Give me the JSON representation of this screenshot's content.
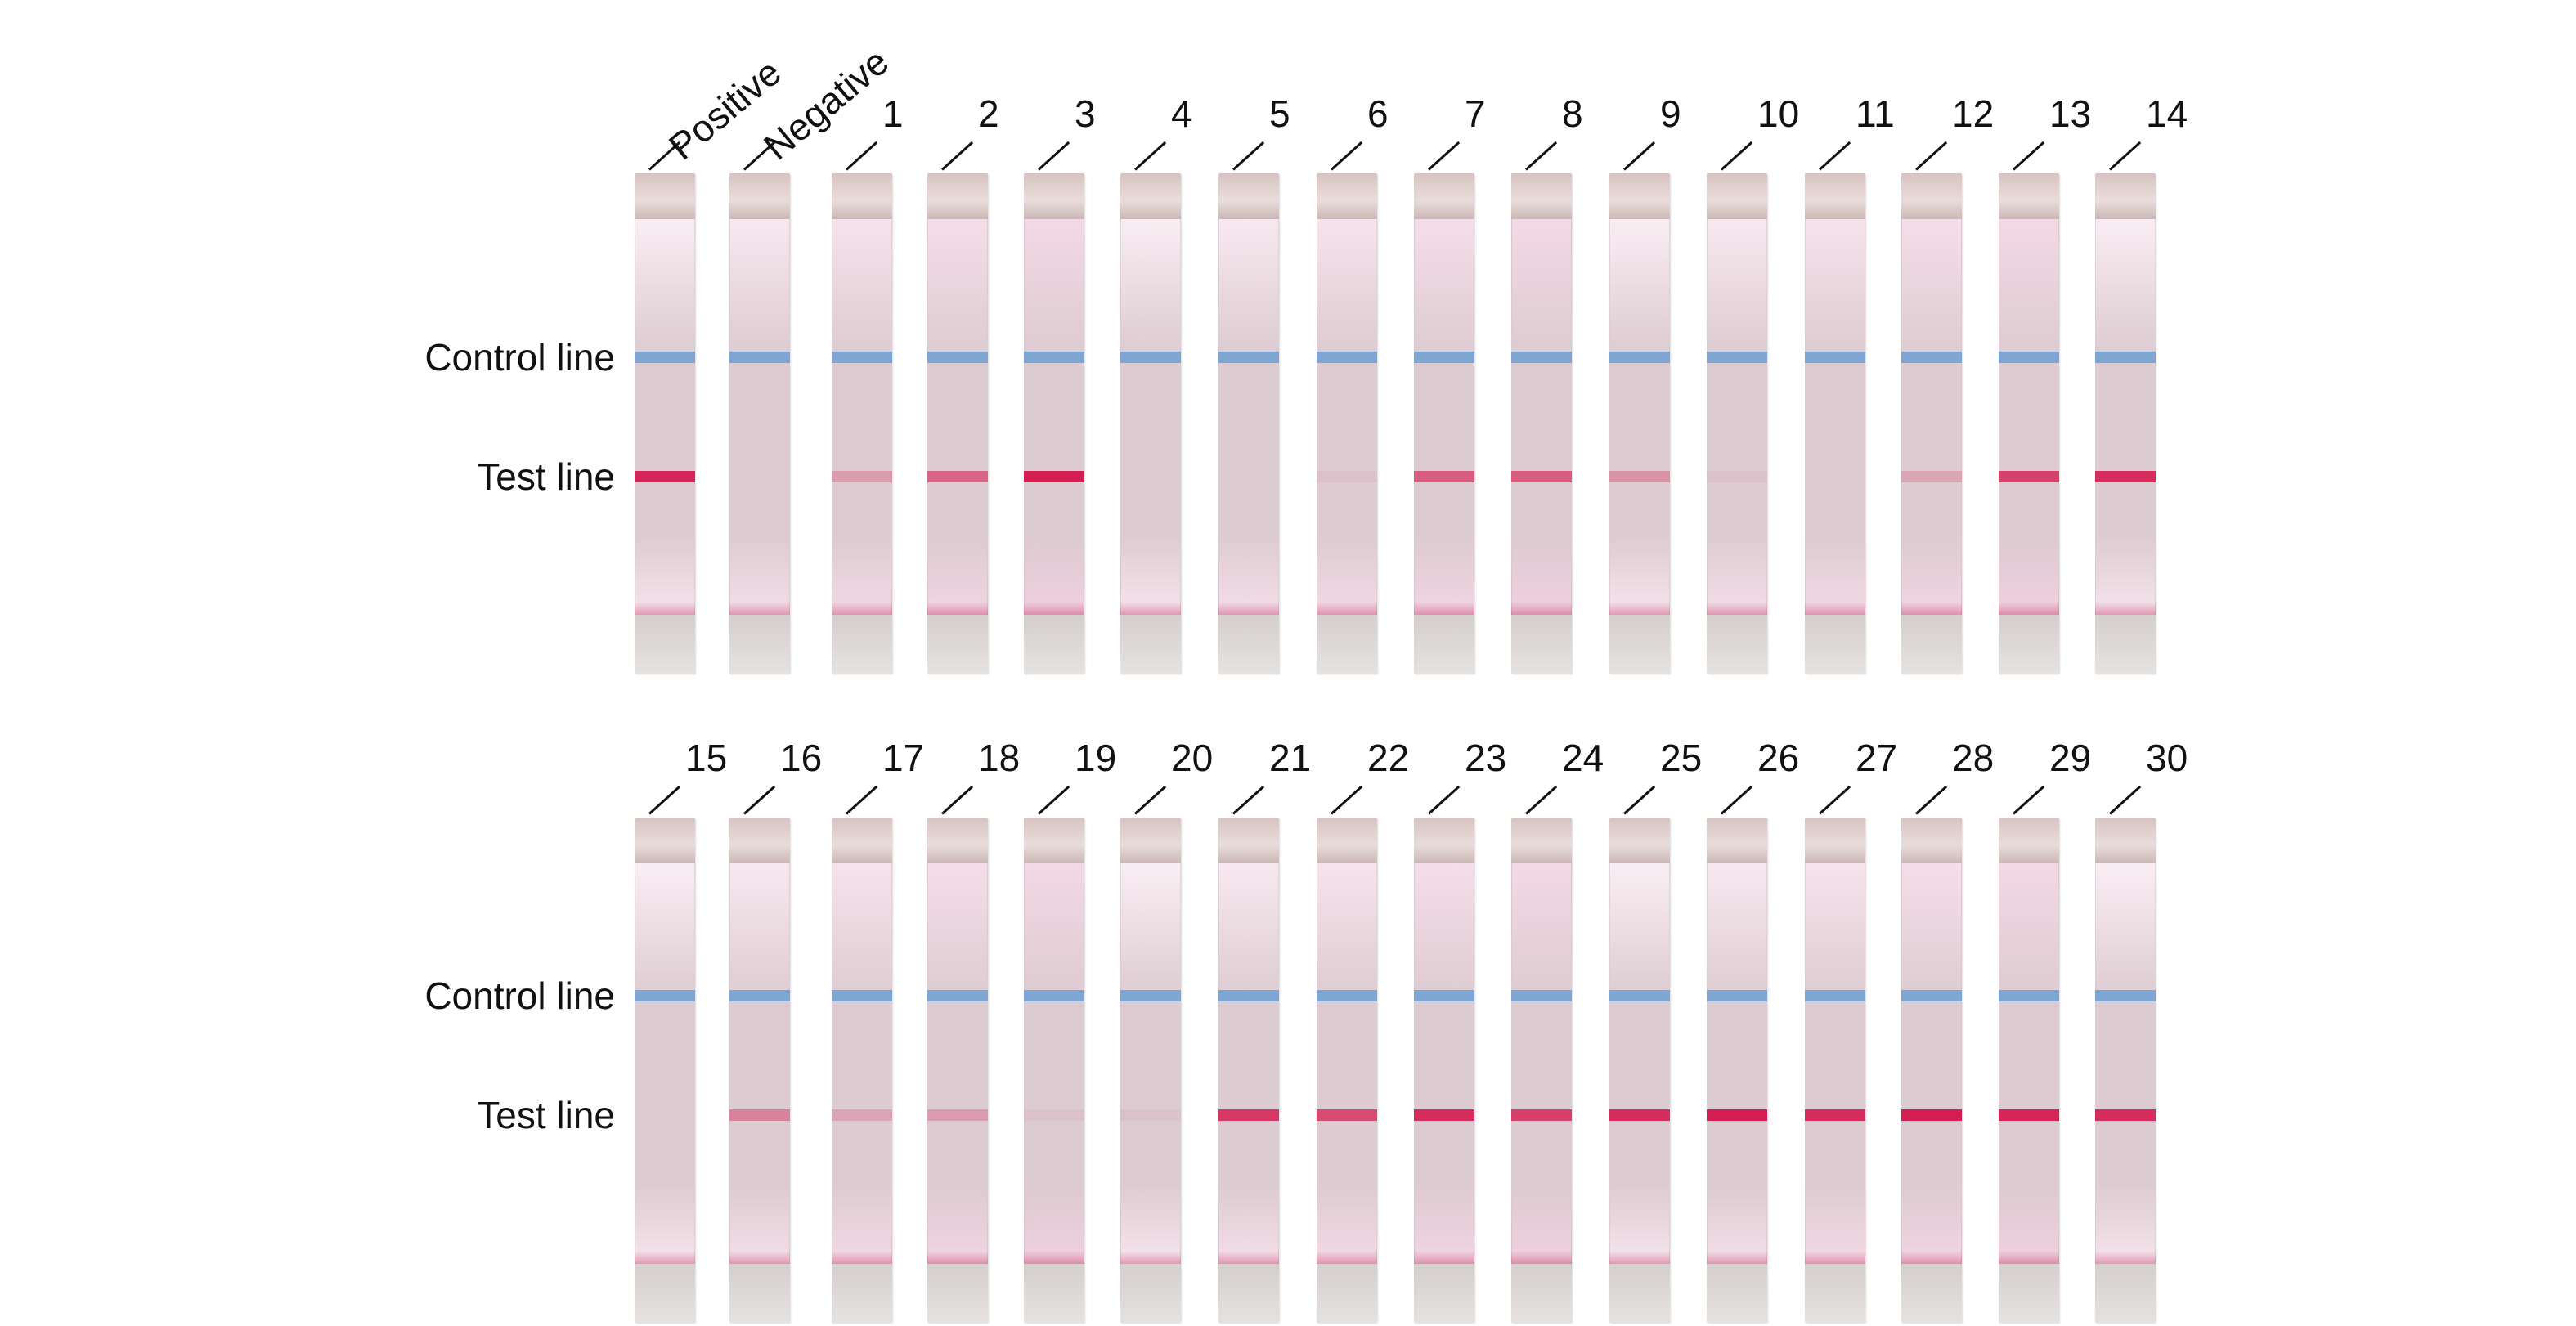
{
  "labels": {
    "control": "Control line",
    "test": "Test line"
  },
  "colors": {
    "control_line": "#6f9fd4",
    "test_line": "#d4134a",
    "membrane": "#dccbd0"
  },
  "rows": [
    {
      "strips": [
        {
          "label": "Positive",
          "test_level": 0.9
        },
        {
          "label": "Negative",
          "test_level": 0.0
        },
        {
          "label": "1",
          "test_level": 0.25
        },
        {
          "label": "2",
          "test_level": 0.55
        },
        {
          "label": "3",
          "test_level": 0.95
        },
        {
          "label": "4",
          "test_level": 0.0
        },
        {
          "label": "5",
          "test_level": 0.0
        },
        {
          "label": "6",
          "test_level": 0.05
        },
        {
          "label": "7",
          "test_level": 0.6
        },
        {
          "label": "8",
          "test_level": 0.6
        },
        {
          "label": "9",
          "test_level": 0.3
        },
        {
          "label": "10",
          "test_level": 0.05
        },
        {
          "label": "11",
          "test_level": 0.0
        },
        {
          "label": "12",
          "test_level": 0.2
        },
        {
          "label": "13",
          "test_level": 0.75
        },
        {
          "label": "14",
          "test_level": 0.85
        }
      ]
    },
    {
      "strips": [
        {
          "label": "15",
          "test_level": 0.0
        },
        {
          "label": "16",
          "test_level": 0.4
        },
        {
          "label": "17",
          "test_level": 0.2
        },
        {
          "label": "18",
          "test_level": 0.25
        },
        {
          "label": "19",
          "test_level": 0.05
        },
        {
          "label": "20",
          "test_level": 0.05
        },
        {
          "label": "21",
          "test_level": 0.8
        },
        {
          "label": "22",
          "test_level": 0.7
        },
        {
          "label": "23",
          "test_level": 0.85
        },
        {
          "label": "24",
          "test_level": 0.75
        },
        {
          "label": "25",
          "test_level": 0.85
        },
        {
          "label": "26",
          "test_level": 0.95
        },
        {
          "label": "27",
          "test_level": 0.85
        },
        {
          "label": "28",
          "test_level": 0.95
        },
        {
          "label": "29",
          "test_level": 0.9
        },
        {
          "label": "30",
          "test_level": 0.85
        }
      ]
    }
  ]
}
